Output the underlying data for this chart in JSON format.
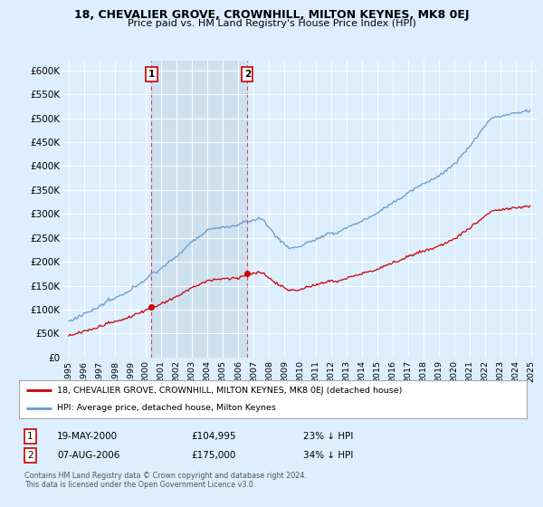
{
  "title": "18, CHEVALIER GROVE, CROWNHILL, MILTON KEYNES, MK8 0EJ",
  "subtitle": "Price paid vs. HM Land Registry's House Price Index (HPI)",
  "ylim": [
    0,
    620000
  ],
  "yticks": [
    0,
    50000,
    100000,
    150000,
    200000,
    250000,
    300000,
    350000,
    400000,
    450000,
    500000,
    550000,
    600000
  ],
  "ytick_labels": [
    "£0",
    "£50K",
    "£100K",
    "£150K",
    "£200K",
    "£250K",
    "£300K",
    "£350K",
    "£400K",
    "£450K",
    "£500K",
    "£550K",
    "£600K"
  ],
  "hpi_color": "#6699cc",
  "price_color": "#cc0000",
  "background_color": "#ddeeff",
  "shade_color": "#cce0f0",
  "purchase1_yr": 2000.375,
  "purchase1_price": 104995,
  "purchase2_yr": 2006.583,
  "purchase2_price": 175000,
  "legend_line1": "18, CHEVALIER GROVE, CROWNHILL, MILTON KEYNES, MK8 0EJ (detached house)",
  "legend_line2": "HPI: Average price, detached house, Milton Keynes",
  "note1_label": "1",
  "note1_date": "19-MAY-2000",
  "note1_price": "£104,995",
  "note1_hpi": "23% ↓ HPI",
  "note2_label": "2",
  "note2_date": "07-AUG-2006",
  "note2_price": "£175,000",
  "note2_hpi": "34% ↓ HPI",
  "footer": "Contains HM Land Registry data © Crown copyright and database right 2024.\nThis data is licensed under the Open Government Licence v3.0."
}
